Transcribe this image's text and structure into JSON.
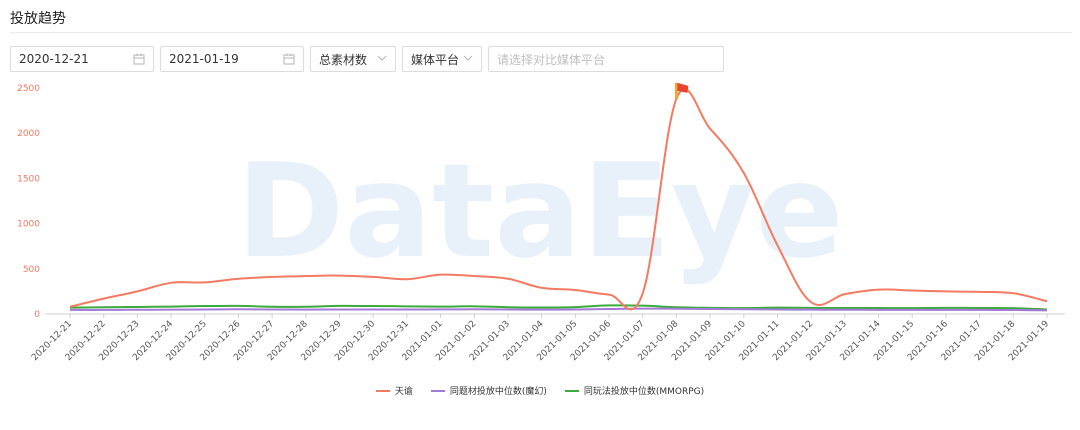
{
  "header": {
    "title": "投放趋势"
  },
  "filters": {
    "start_date": "2020-12-21",
    "end_date": "2021-01-19",
    "metric_select": "总素材数",
    "platform_select": "媒体平台",
    "compare_placeholder": "请选择对比媒体平台",
    "calendar_icon": "calendar-icon",
    "dropdown_icon": "chevron-down-icon"
  },
  "watermark": "DataEye",
  "chart_data": {
    "type": "line",
    "categories": [
      "2020-12-21",
      "2020-12-22",
      "2020-12-23",
      "2020-12-24",
      "2020-12-25",
      "2020-12-26",
      "2020-12-27",
      "2020-12-28",
      "2020-12-29",
      "2020-12-30",
      "2020-12-31",
      "2021-01-01",
      "2021-01-02",
      "2021-01-03",
      "2021-01-04",
      "2021-01-05",
      "2021-01-06",
      "2021-01-07",
      "2021-01-08",
      "2021-01-09",
      "2021-01-10",
      "2021-01-11",
      "2021-01-12",
      "2021-01-13",
      "2021-01-14",
      "2021-01-15",
      "2021-01-16",
      "2021-01-17",
      "2021-01-18",
      "2021-01-19"
    ],
    "ylim": [
      0,
      2500
    ],
    "yticks": [
      0,
      500,
      1000,
      1500,
      2000,
      2500
    ],
    "grid": false,
    "legend_position": "bottom",
    "marker": {
      "category": "2021-01-08",
      "icon": "flag-icon"
    },
    "series": [
      {
        "name": "天谕",
        "color": "#f47a61",
        "values": [
          80,
          170,
          250,
          345,
          350,
          390,
          410,
          420,
          425,
          410,
          385,
          435,
          420,
          390,
          290,
          265,
          215,
          230,
          2380,
          2050,
          1560,
          760,
          130,
          220,
          270,
          260,
          250,
          245,
          230,
          140
        ]
      },
      {
        "name": "同题材投放中位数(魔幻)",
        "color": "#a47ad8",
        "values": [
          45,
          45,
          47,
          48,
          50,
          52,
          50,
          49,
          50,
          50,
          50,
          51,
          52,
          50,
          48,
          50,
          55,
          60,
          58,
          55,
          52,
          50,
          48,
          47,
          46,
          46,
          45,
          45,
          44,
          40
        ]
      },
      {
        "name": "同玩法投放中位数(MMORPG)",
        "color": "#3caa3c",
        "values": [
          70,
          75,
          78,
          82,
          88,
          90,
          80,
          80,
          90,
          88,
          85,
          82,
          85,
          75,
          72,
          76,
          95,
          92,
          75,
          68,
          65,
          70,
          68,
          66,
          66,
          65,
          68,
          67,
          65,
          50
        ]
      }
    ]
  }
}
